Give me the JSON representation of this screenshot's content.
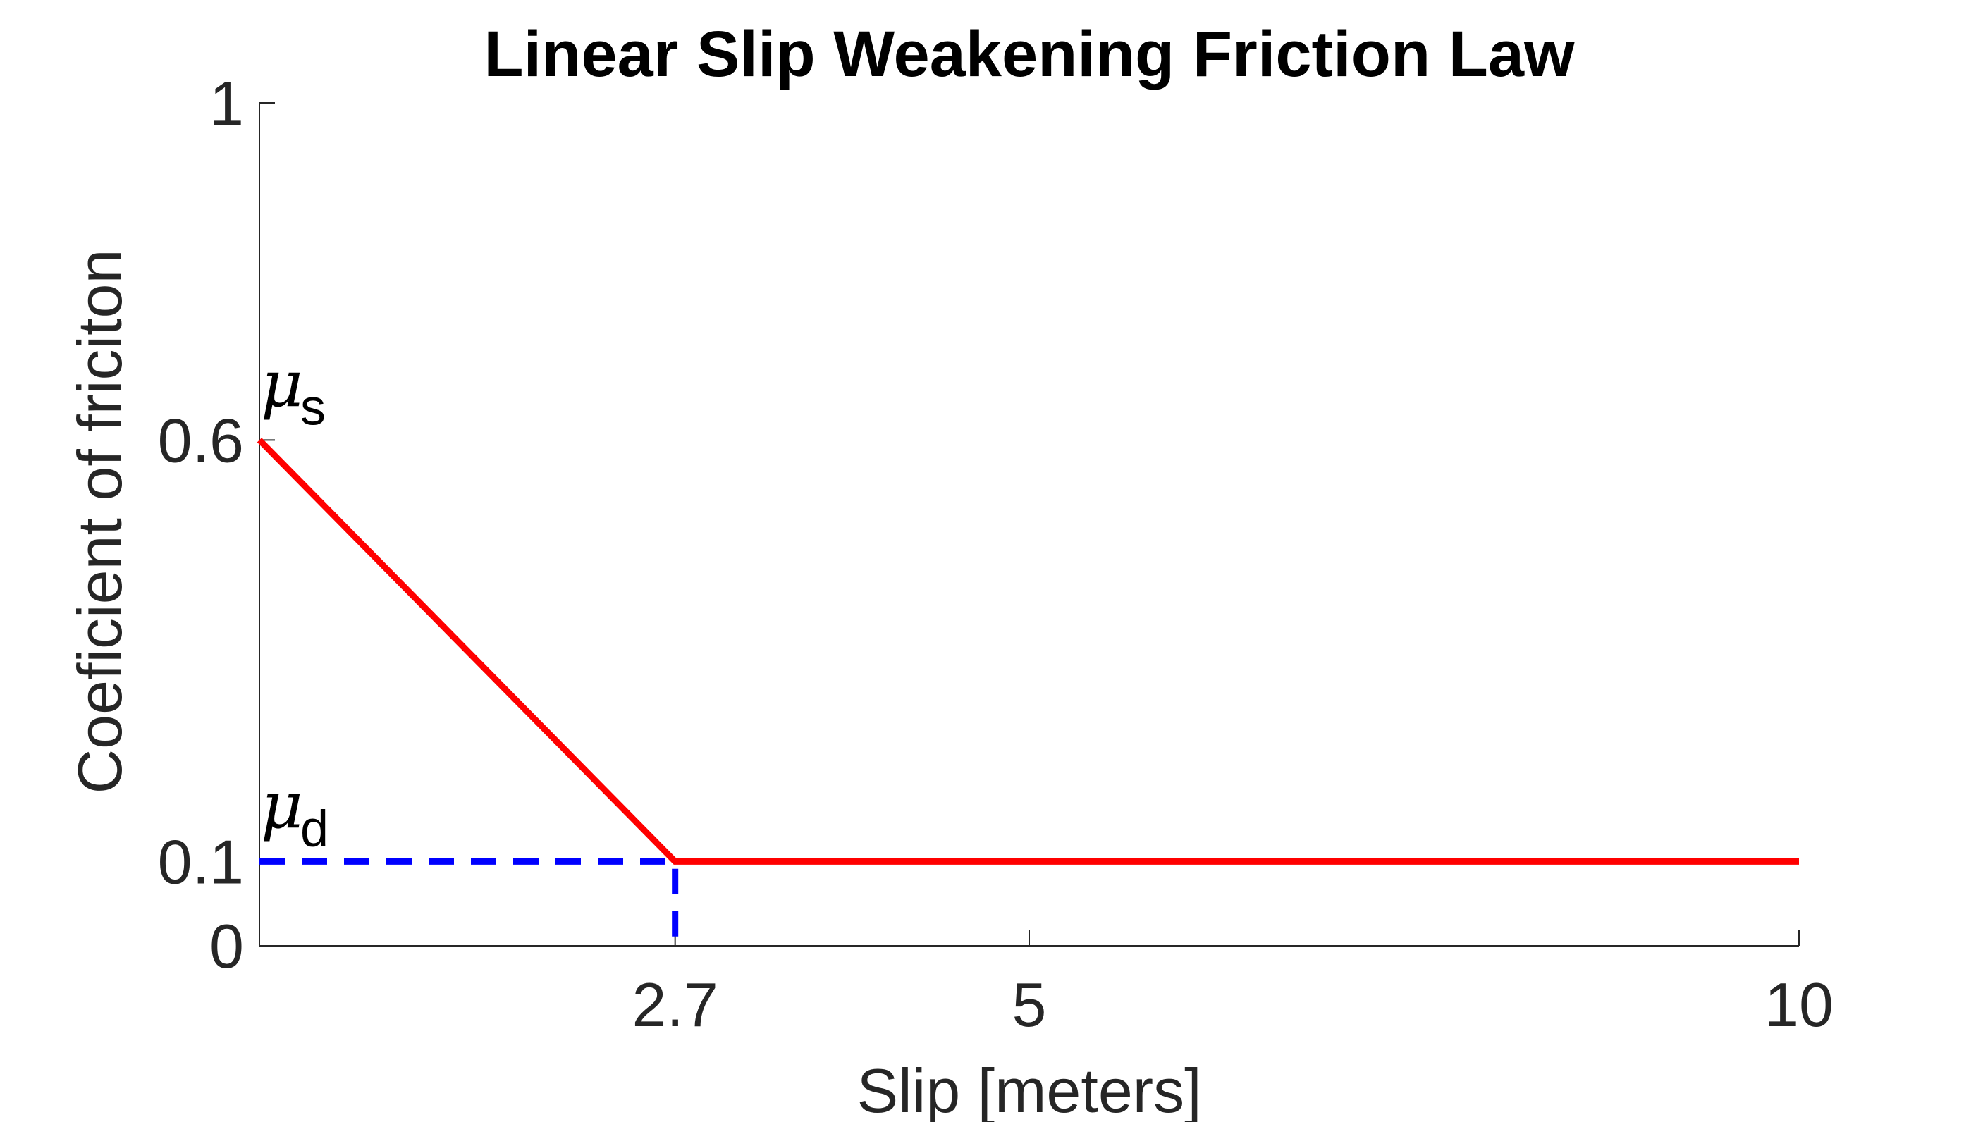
{
  "chart_data": {
    "type": "line",
    "title": "Linear Slip Weakening Friction Law",
    "xlabel": "Slip [meters]",
    "ylabel": "Coeficient of friciton",
    "xlim": [
      0,
      10
    ],
    "ylim": [
      0,
      1
    ],
    "xticks": [
      2.7,
      5,
      10
    ],
    "xtick_labels": [
      "2.7",
      "5",
      "10"
    ],
    "yticks": [
      0,
      0.1,
      0.6,
      1
    ],
    "ytick_labels": [
      "0",
      "0.1",
      "0.6",
      "1"
    ],
    "grid": false,
    "legend": "none",
    "series": [
      {
        "x": [
          0,
          2.7,
          10
        ],
        "y": [
          0.6,
          0.1,
          0.1
        ],
        "color": "#ff0000",
        "style": "solid"
      },
      {
        "x": [
          0,
          2.7,
          2.7
        ],
        "y": [
          0.1,
          0.1,
          0
        ],
        "color": "#0000ff",
        "style": "dashed"
      }
    ],
    "annotations": [
      {
        "symbol": "μ",
        "subscript": "s",
        "x": 0,
        "y": 0.6
      },
      {
        "symbol": "μ",
        "subscript": "d",
        "x": 0,
        "y": 0.1
      }
    ]
  }
}
